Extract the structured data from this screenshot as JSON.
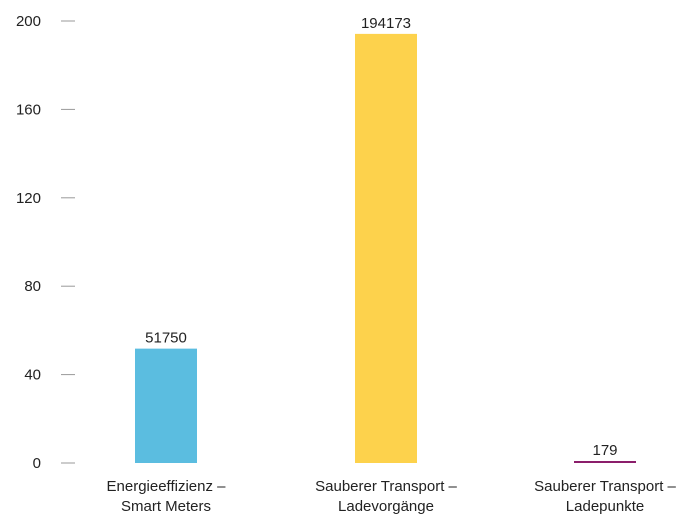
{
  "chart_data": {
    "type": "bar",
    "title": "",
    "xlabel": "",
    "ylabel": "",
    "ylim": [
      0,
      200
    ],
    "yticks": [
      0,
      40,
      80,
      120,
      160,
      200
    ],
    "grid": false,
    "categories": [
      [
        "Energieeffizienz –",
        "Smart Meters"
      ],
      [
        "Sauberer Transport –",
        "Ladevorgänge"
      ],
      [
        "Sauberer Transport –",
        "Ladepunkte"
      ]
    ],
    "values": [
      51750,
      194173,
      179
    ],
    "value_labels": [
      "51750",
      "194173",
      "179"
    ],
    "bar_values_in_axis_units": [
      51.75,
      194.173,
      0.179
    ],
    "colors": [
      "#5bbde0",
      "#fdd24c",
      "#8b1e6b"
    ]
  }
}
